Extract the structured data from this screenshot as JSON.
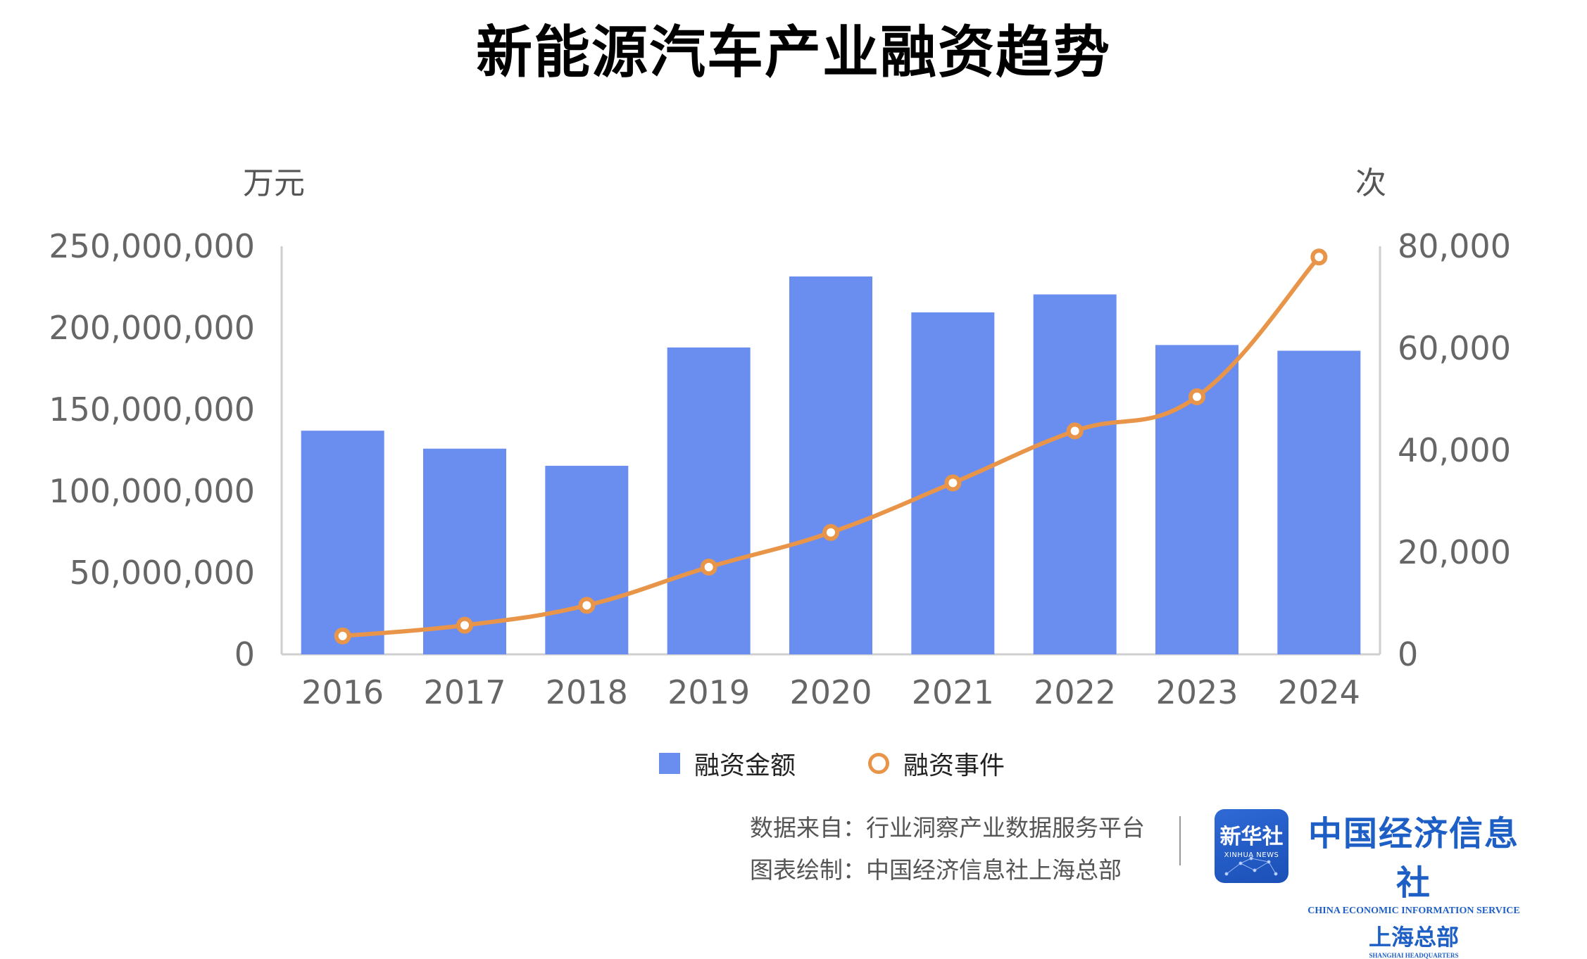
{
  "chart_data": {
    "type": "bar",
    "title": "新能源汽车产业融资趋势",
    "categories": [
      "2016",
      "2017",
      "2018",
      "2019",
      "2020",
      "2021",
      "2022",
      "2023",
      "2024"
    ],
    "y_left_unit": "万元",
    "y_right_unit": "次",
    "y_left_range": [
      0,
      250000000
    ],
    "y_left_ticks": [
      "0",
      "50,000,000",
      "100,000,000",
      "150,000,000",
      "200,000,000",
      "250,000,000"
    ],
    "y_right_range": [
      0,
      80000
    ],
    "y_right_ticks": [
      "0",
      "20,000",
      "40,000",
      "60,000",
      "80,000"
    ],
    "series": [
      {
        "name": "融资金额",
        "type": "bar",
        "axis": "left",
        "color": "#6a8ef0",
        "values": [
          137000000,
          126000000,
          115500000,
          188000000,
          231500000,
          209500000,
          220500000,
          189500000,
          186000000
        ]
      },
      {
        "name": "融资事件",
        "type": "line",
        "axis": "right",
        "color": "#e8954a",
        "values": [
          3600,
          5700,
          9600,
          17100,
          23900,
          33600,
          43800,
          50500,
          77900
        ]
      }
    ],
    "grid": false,
    "legend_position": "bottom"
  },
  "source": {
    "data_source": "数据来自：行业洞察产业数据服务平台",
    "drawn_by": "图表绘制：中国经济信息社上海总部"
  },
  "logos": {
    "xinhua_cn": "新华社",
    "xinhua_en": "XINHUA NEWS",
    "ceis_cn": "中国经济信息社",
    "ceis_en": "CHINA ECONOMIC INFORMATION SERVICE",
    "ceis_branch_cn": "上海总部",
    "ceis_branch_en": "SHANGHAI HEADQUARTERS"
  }
}
